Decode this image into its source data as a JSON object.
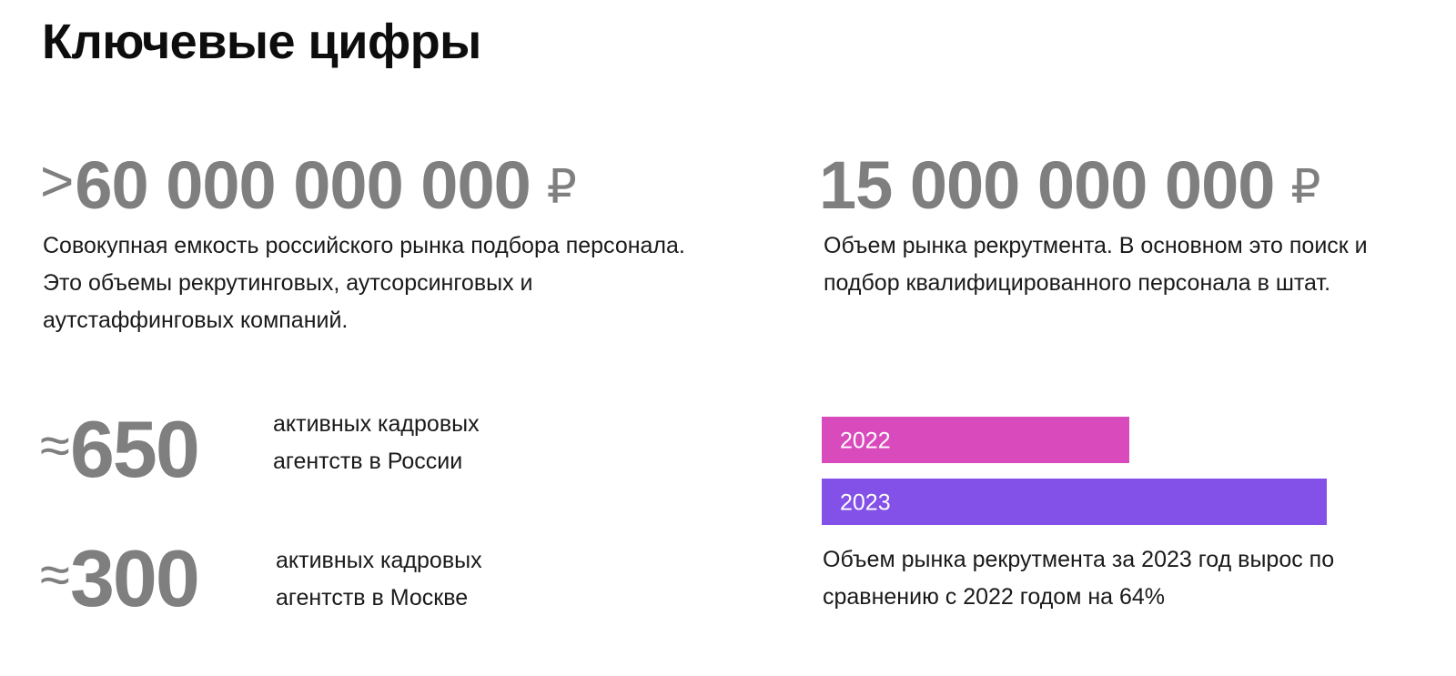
{
  "page": {
    "title": "Ключевые цифры"
  },
  "stats": [
    {
      "prefix": ">",
      "value": "60 000 000 000",
      "currency": "₽",
      "description": "Совокупная емкость российского рынка подбора персонала. Это объемы рекрутинговых, аутсорсинговых и аутстаффинговых компаний."
    },
    {
      "prefix": "",
      "value": "15 000 000 000",
      "currency": "₽",
      "description": "Объем рынка рекрутмента. В основном это поиск и подбор квалифицированного персонала в штат."
    }
  ],
  "agencies": [
    {
      "prefix": "≈",
      "value": "650",
      "label": "активных кадровых агентств в России"
    },
    {
      "prefix": "≈",
      "value": "300",
      "label": "активных кадровых агентств в Москве"
    }
  ],
  "colors": {
    "stat_gray": "#7f7f7f",
    "bar_2022": "#d94bbd",
    "bar_2023": "#8350e8"
  },
  "chart_data": {
    "type": "bar",
    "orientation": "horizontal",
    "categories": [
      "2022",
      "2023"
    ],
    "values": [
      100,
      164
    ],
    "series": [
      {
        "values": [
          100,
          164
        ]
      }
    ],
    "colors": [
      "#d94bbd",
      "#8350e8"
    ],
    "caption": "Объем рынка рекрутмента за 2023 год вырос по сравнению с 2022 годом на 64%",
    "title": "",
    "xlabel": "",
    "ylabel": "",
    "xlim": [
      0,
      180
    ],
    "grid": false
  }
}
